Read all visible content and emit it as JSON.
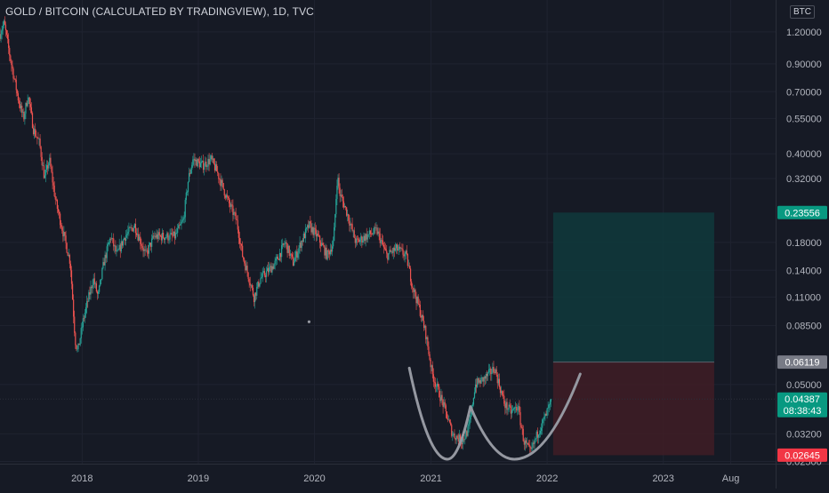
{
  "header": {
    "title": "GOLD / BITCOIN (CALCULATED BY TRADINGVIEW), 1D, TVC",
    "unit_badge": "BTC"
  },
  "chart_data": {
    "type": "candlestick",
    "title": "GOLD / BITCOIN (CALCULATED BY TRADINGVIEW), 1D, TVC",
    "scale": "log",
    "ylim": [
      0.0245,
      1.6
    ],
    "y_ticks": [
      "1.20000",
      "0.90000",
      "0.70000",
      "0.55000",
      "0.40000",
      "0.32000",
      "0.18000",
      "0.14000",
      "0.11000",
      "0.08500",
      "0.05000",
      "0.03200",
      "0.02500"
    ],
    "y_tick_values": [
      1.2,
      0.9,
      0.7,
      0.55,
      0.4,
      0.32,
      0.18,
      0.14,
      0.11,
      0.085,
      0.05,
      0.032,
      0.025
    ],
    "x_ticks": [
      "2018",
      "2019",
      "2020",
      "2021",
      "2022",
      "2023",
      "Aug"
    ],
    "x_tick_dates": [
      "2018-01-01",
      "2019-01-01",
      "2020-01-01",
      "2021-01-01",
      "2022-01-01",
      "2023-01-01",
      "2023-08-01"
    ],
    "x_range": [
      "2017-04-18",
      "2023-12-20"
    ],
    "price_path": [
      [
        "2017-04-18",
        1.18
      ],
      [
        "2017-05-01",
        1.3
      ],
      [
        "2017-05-20",
        0.95
      ],
      [
        "2017-06-15",
        0.65
      ],
      [
        "2017-07-01",
        0.55
      ],
      [
        "2017-07-15",
        0.68
      ],
      [
        "2017-08-01",
        0.5
      ],
      [
        "2017-08-20",
        0.44
      ],
      [
        "2017-09-05",
        0.32
      ],
      [
        "2017-09-20",
        0.38
      ],
      [
        "2017-10-10",
        0.26
      ],
      [
        "2017-11-01",
        0.2
      ],
      [
        "2017-11-25",
        0.15
      ],
      [
        "2017-12-10",
        0.075
      ],
      [
        "2017-12-18",
        0.067
      ],
      [
        "2018-01-05",
        0.09
      ],
      [
        "2018-02-05",
        0.13
      ],
      [
        "2018-02-20",
        0.11
      ],
      [
        "2018-03-10",
        0.15
      ],
      [
        "2018-04-01",
        0.19
      ],
      [
        "2018-04-20",
        0.16
      ],
      [
        "2018-05-15",
        0.19
      ],
      [
        "2018-06-15",
        0.21
      ],
      [
        "2018-07-20",
        0.16
      ],
      [
        "2018-08-15",
        0.19
      ],
      [
        "2018-09-20",
        0.19
      ],
      [
        "2018-10-20",
        0.19
      ],
      [
        "2018-11-15",
        0.22
      ],
      [
        "2018-12-01",
        0.32
      ],
      [
        "2018-12-15",
        0.38
      ],
      [
        "2019-01-15",
        0.36
      ],
      [
        "2019-02-10",
        0.38
      ],
      [
        "2019-03-01",
        0.34
      ],
      [
        "2019-04-05",
        0.26
      ],
      [
        "2019-05-01",
        0.22
      ],
      [
        "2019-05-20",
        0.16
      ],
      [
        "2019-06-10",
        0.13
      ],
      [
        "2019-06-25",
        0.11
      ],
      [
        "2019-07-15",
        0.13
      ],
      [
        "2019-08-10",
        0.14
      ],
      [
        "2019-09-01",
        0.15
      ],
      [
        "2019-10-01",
        0.18
      ],
      [
        "2019-10-26",
        0.15
      ],
      [
        "2019-11-20",
        0.18
      ],
      [
        "2019-12-15",
        0.21
      ],
      [
        "2020-01-10",
        0.19
      ],
      [
        "2020-02-10",
        0.16
      ],
      [
        "2020-03-01",
        0.18
      ],
      [
        "2020-03-13",
        0.33
      ],
      [
        "2020-03-20",
        0.28
      ],
      [
        "2020-04-10",
        0.24
      ],
      [
        "2020-05-10",
        0.18
      ],
      [
        "2020-06-10",
        0.19
      ],
      [
        "2020-07-15",
        0.2
      ],
      [
        "2020-08-15",
        0.16
      ],
      [
        "2020-09-15",
        0.17
      ],
      [
        "2020-10-15",
        0.16
      ],
      [
        "2020-11-05",
        0.12
      ],
      [
        "2020-11-25",
        0.1
      ],
      [
        "2020-12-15",
        0.08
      ],
      [
        "2021-01-05",
        0.055
      ],
      [
        "2021-02-08",
        0.042
      ],
      [
        "2021-03-10",
        0.032
      ],
      [
        "2021-04-10",
        0.03
      ],
      [
        "2021-05-01",
        0.034
      ],
      [
        "2021-05-20",
        0.05
      ],
      [
        "2021-06-20",
        0.053
      ],
      [
        "2021-07-20",
        0.058
      ],
      [
        "2021-08-20",
        0.042
      ],
      [
        "2021-09-10",
        0.039
      ],
      [
        "2021-10-01",
        0.041
      ],
      [
        "2021-10-20",
        0.03
      ],
      [
        "2021-11-10",
        0.027
      ],
      [
        "2021-12-05",
        0.033
      ],
      [
        "2021-12-25",
        0.037
      ],
      [
        "2022-01-15",
        0.043
      ]
    ],
    "annotations": {
      "w_pattern": [
        [
          "2020-10-25",
          0.058
        ],
        [
          "2021-02-22",
          0.0255
        ],
        [
          "2021-05-05",
          0.041
        ],
        [
          "2021-09-20",
          0.0255
        ],
        [
          "2022-04-15",
          0.055
        ]
      ],
      "position": {
        "start": "2022-01-20",
        "end": "2023-06-10",
        "entry": 0.06119,
        "target": 0.23556,
        "stop": 0.02645
      },
      "current_price": 0.04387,
      "countdown": "08:38:43",
      "dot": [
        "2019-12-15",
        0.088
      ]
    },
    "price_labels": [
      {
        "value": 0.23556,
        "text": "0.23556",
        "color": "#089981"
      },
      {
        "value": 0.06119,
        "text": "0.06119",
        "color": "#787b86"
      },
      {
        "value": 0.04387,
        "text": "0.04387",
        "color": "#089981"
      },
      {
        "value": 0.02645,
        "text": "0.02645",
        "color": "#f23645"
      }
    ],
    "colors": {
      "background": "#161a25",
      "up": "#26a69a",
      "down": "#ef5350",
      "profit_zone": "#0f3a3c",
      "loss_zone": "#3f1d26",
      "pattern": "#9598a1",
      "axis_text": "#b2b5be"
    },
    "grid": true,
    "legend": "none"
  }
}
